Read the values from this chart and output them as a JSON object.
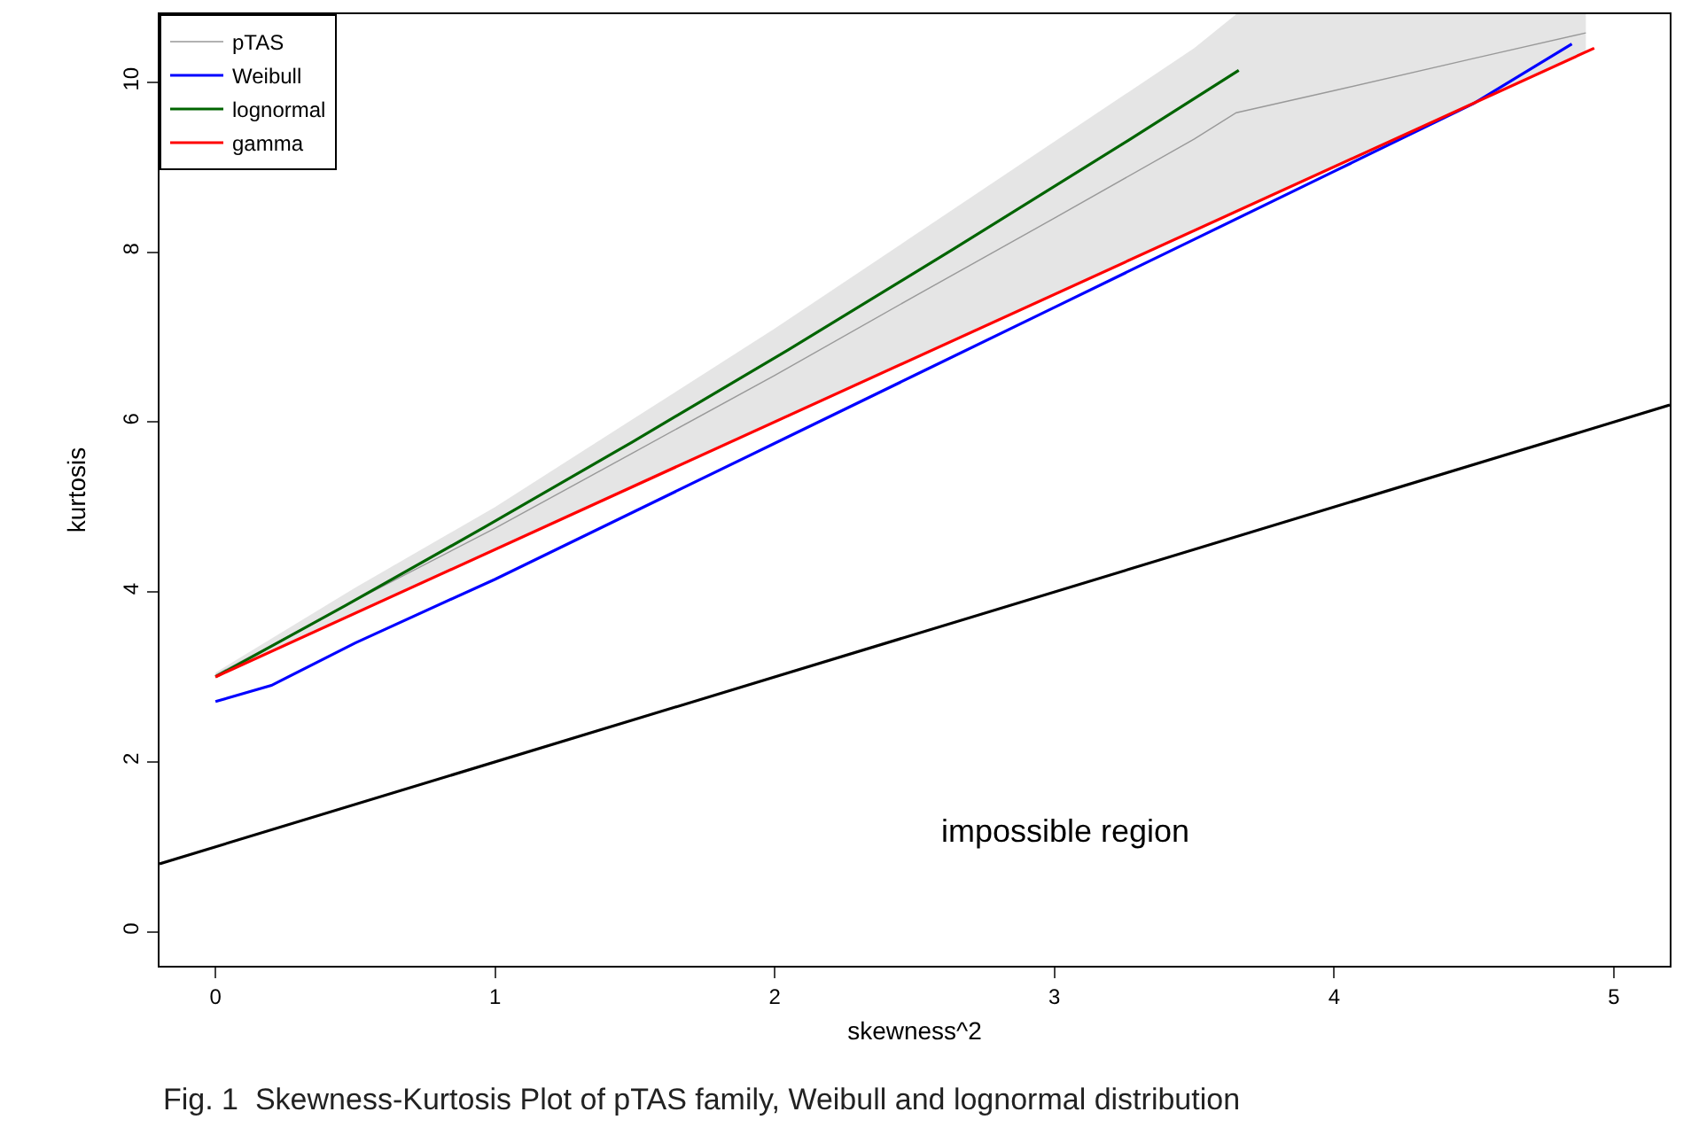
{
  "chart_data": {
    "type": "line",
    "xlabel": "skewness^2",
    "ylabel": "kurtosis",
    "xlim": [
      -0.2,
      5.2
    ],
    "ylim": [
      -0.4,
      10.8
    ],
    "xticks": [
      0,
      1,
      2,
      3,
      4,
      5
    ],
    "yticks": [
      0,
      2,
      4,
      6,
      8,
      10
    ],
    "legend": "top left",
    "marker": "none",
    "line_style": "solid",
    "series": [
      {
        "name": "pTAS",
        "color": "#999999",
        "x": [
          0,
          0.5,
          1,
          1.5,
          2,
          2.5,
          3,
          3.5,
          3.65,
          4,
          4.5,
          4.9
        ],
        "values": [
          3.02,
          3.9,
          4.75,
          5.65,
          6.55,
          7.48,
          8.4,
          9.33,
          9.64,
          9.9,
          10.28,
          10.58
        ],
        "lower": [
          3,
          3.75,
          4.5,
          5.25,
          6,
          6.75,
          7.5,
          8.25,
          8.48,
          9,
          9.75,
          10.35
        ],
        "upper": [
          3.05,
          4.05,
          5.0,
          6.05,
          7.1,
          8.2,
          9.3,
          10.4,
          10.8,
          10.8,
          10.8,
          10.8
        ]
      },
      {
        "name": "Weibull",
        "color": "#0000ff",
        "x": [
          0,
          0.2,
          0.5,
          1,
          1.5,
          2,
          2.5,
          3,
          3.5,
          4,
          4.5,
          4.85
        ],
        "values": [
          2.71,
          2.9,
          3.4,
          4.15,
          4.95,
          5.75,
          6.55,
          7.35,
          8.15,
          8.95,
          9.75,
          10.45
        ]
      },
      {
        "name": "lognormal",
        "color": "#006400",
        "x": [
          0,
          0.465,
          0.961,
          1.488,
          2.048,
          2.641,
          3.267,
          3.659
        ],
        "values": [
          3,
          3.84,
          4.76,
          5.76,
          6.85,
          8.04,
          9.32,
          10.14
        ]
      },
      {
        "name": "gamma",
        "color": "#ff0000",
        "x": [
          0,
          4.93
        ],
        "values": [
          3,
          10.4
        ]
      },
      {
        "color": "#000000",
        "x": [
          -0.2,
          5.2
        ],
        "values": [
          0.8,
          6.2
        ]
      }
    ],
    "annotations": [
      "impossible region",
      "Fig. 1  Skewness-Kurtosis Plot of pTAS family, Weibull and lognormal distribution"
    ]
  }
}
